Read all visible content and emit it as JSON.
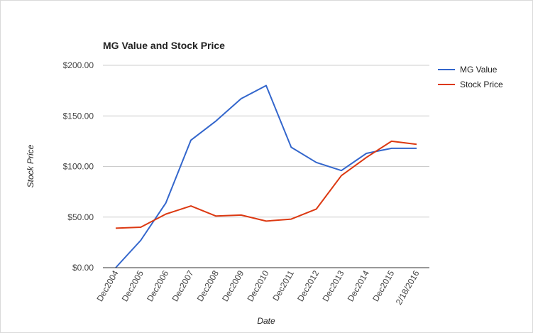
{
  "chart_data": {
    "type": "line",
    "title": "MG Value and Stock Price",
    "xlabel": "Date",
    "ylabel": "Stock Price",
    "categories": [
      "Dec2004",
      "Dec2005",
      "Dec2006",
      "Dec2007",
      "Dec2008",
      "Dec2009",
      "Dec2010",
      "Dec2011",
      "Dec2012",
      "Dec2013",
      "Dec2014",
      "Dec2015",
      "2/18/2016"
    ],
    "ylim": [
      0,
      200
    ],
    "yticks": [
      0,
      50,
      100,
      150,
      200
    ],
    "ytick_labels": [
      "$0.00",
      "$50.00",
      "$100.00",
      "$150.00",
      "$200.00"
    ],
    "grid": true,
    "legend_position": "right",
    "series": [
      {
        "name": "MG Value",
        "color": "#3366cc",
        "values": [
          0,
          27,
          64,
          126,
          145,
          167,
          180,
          119,
          104,
          96,
          113,
          118,
          118
        ]
      },
      {
        "name": "Stock Price",
        "color": "#dc3912",
        "values": [
          39,
          40,
          53,
          61,
          51,
          52,
          46,
          48,
          58,
          91,
          109,
          125,
          122
        ]
      }
    ]
  }
}
